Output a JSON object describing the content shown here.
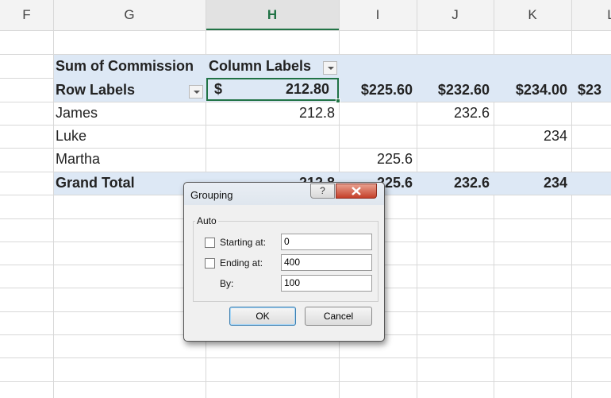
{
  "column_headers": [
    "F",
    "G",
    "H",
    "I",
    "J",
    "K",
    "L"
  ],
  "pivot": {
    "corner_label": "Sum of Commission",
    "column_labels": "Column Labels",
    "row_labels": "Row Labels",
    "first_column_header": {
      "symbol": "$",
      "amount": "212.80"
    },
    "column_headers": [
      "$225.60",
      "$232.60",
      "$234.00",
      "$23"
    ],
    "rows": [
      {
        "label": "James",
        "cells": [
          "212.8",
          null,
          "232.6",
          null
        ]
      },
      {
        "label": "Luke",
        "cells": [
          null,
          null,
          null,
          "234"
        ]
      },
      {
        "label": "Martha",
        "cells": [
          null,
          "225.6",
          null,
          null
        ]
      }
    ],
    "grand_total": {
      "label": "Grand Total",
      "cells": [
        "212.8",
        "225.6",
        "232.6",
        "234"
      ]
    }
  },
  "dialog": {
    "title": "Grouping",
    "help": "?",
    "group": "Auto",
    "fields": [
      {
        "label": "Starting at:",
        "value": "0"
      },
      {
        "label": "Ending at:",
        "value": "400"
      },
      {
        "label": "By:",
        "value": "100"
      }
    ],
    "buttons": [
      "OK",
      "Cancel"
    ]
  }
}
